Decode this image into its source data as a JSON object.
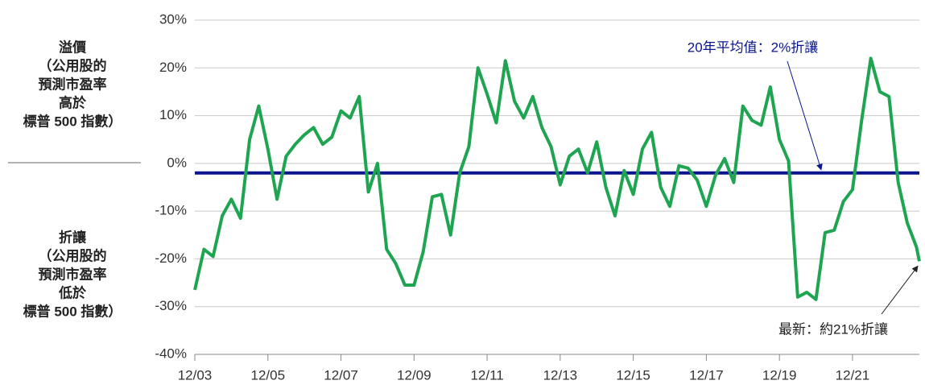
{
  "chart_data": {
    "type": "line",
    "y_label_top": [
      "溢價",
      "（公用股的",
      "預測市盈率",
      "高於",
      "標普 500 指數）"
    ],
    "y_label_bottom": [
      "折讓",
      "（公用股的",
      "預測市盈率",
      "低於",
      "標普 500 指數）"
    ],
    "x": [
      2003.92,
      2004.17,
      2004.42,
      2004.67,
      2004.92,
      2005.17,
      2005.42,
      2005.67,
      2005.92,
      2006.17,
      2006.42,
      2006.67,
      2006.92,
      2007.17,
      2007.42,
      2007.67,
      2007.92,
      2008.17,
      2008.42,
      2008.67,
      2008.92,
      2009.17,
      2009.42,
      2009.67,
      2009.92,
      2010.17,
      2010.42,
      2010.67,
      2010.92,
      2011.17,
      2011.42,
      2011.67,
      2011.92,
      2012.17,
      2012.42,
      2012.67,
      2012.92,
      2013.17,
      2013.42,
      2013.67,
      2013.92,
      2014.17,
      2014.42,
      2014.67,
      2014.92,
      2015.17,
      2015.42,
      2015.67,
      2015.92,
      2016.17,
      2016.42,
      2016.67,
      2016.92,
      2017.17,
      2017.42,
      2017.67,
      2017.92,
      2018.17,
      2018.42,
      2018.67,
      2018.92,
      2019.17,
      2019.42,
      2019.67,
      2019.92,
      2020.17,
      2020.42,
      2020.67,
      2020.92,
      2021.17,
      2021.42,
      2021.67,
      2021.92,
      2022.17,
      2022.42,
      2022.67,
      2022.92,
      2023.17,
      2023.42,
      2023.67,
      2023.75
    ],
    "series": [
      {
        "color": "#1fa552",
        "values": [
          -26.5,
          -18,
          -19.5,
          -11,
          -7.5,
          -11.5,
          5,
          12,
          3,
          -7.5,
          1.5,
          4,
          6,
          7.5,
          4,
          5.5,
          11,
          9.5,
          14,
          -6,
          0,
          -18,
          -21,
          -25.5,
          -25.5,
          -18.5,
          -7,
          -6.5,
          -15,
          -2,
          3.5,
          20,
          14.5,
          8.5,
          21.5,
          13,
          9.5,
          14,
          7.5,
          3.5,
          -4.5,
          1.5,
          3,
          -2,
          4.5,
          -5,
          -11,
          -1.5,
          -6.5,
          3,
          6.5,
          -5,
          -9,
          -0.5,
          -1,
          -3.5,
          -9,
          -2.5,
          1,
          -4,
          12,
          9,
          8,
          16,
          5,
          0.5,
          -28,
          -27,
          -28.5,
          -14.5,
          -14,
          -8,
          -5.5,
          9,
          22,
          15,
          14,
          -4,
          -12.5,
          -17.5,
          -20.5
        ]
      }
    ],
    "reference_line": {
      "value": -2,
      "color": "#0a148c"
    },
    "annotations": [
      {
        "text": "20年平均值：2%折讓",
        "color": "#0a148c"
      },
      {
        "text": "最新：約21%折讓",
        "color": "#222222"
      }
    ],
    "xlim": [
      2003.92,
      2023.75
    ],
    "xticks": [
      {
        "value": 2003.92,
        "label": "12/03"
      },
      {
        "value": 2005.92,
        "label": "12/05"
      },
      {
        "value": 2007.92,
        "label": "12/07"
      },
      {
        "value": 2009.92,
        "label": "12/09"
      },
      {
        "value": 2011.92,
        "label": "12/11"
      },
      {
        "value": 2013.92,
        "label": "12/13"
      },
      {
        "value": 2015.92,
        "label": "12/15"
      },
      {
        "value": 2017.92,
        "label": "12/17"
      },
      {
        "value": 2019.92,
        "label": "12/19"
      },
      {
        "value": 2021.92,
        "label": "12/21"
      }
    ],
    "ylim": [
      -40,
      30
    ],
    "yticks": [
      {
        "value": -40,
        "label": "-40%"
      },
      {
        "value": -30,
        "label": "-30%"
      },
      {
        "value": -20,
        "label": "-20%"
      },
      {
        "value": -10,
        "label": "-10%"
      },
      {
        "value": 0,
        "label": "0%"
      },
      {
        "value": 10,
        "label": "10%"
      },
      {
        "value": 20,
        "label": "20%"
      },
      {
        "value": 30,
        "label": "30%"
      }
    ],
    "grid": true
  }
}
